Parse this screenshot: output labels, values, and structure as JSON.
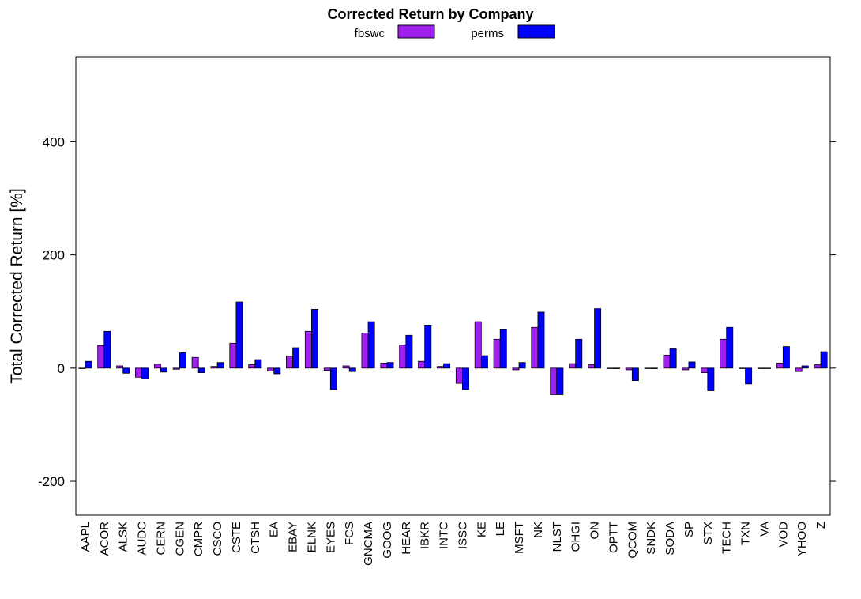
{
  "chart_data": {
    "type": "bar",
    "title": "Corrected Return by Company",
    "xlabel": "",
    "ylabel": "Total Corrected Return [%]",
    "ylim": [
      -260,
      550
    ],
    "yticks": [
      -200,
      0,
      200,
      400
    ],
    "grid": false,
    "legend_position": "top",
    "categories": [
      "AAPL",
      "ACOR",
      "ALSK",
      "AUDC",
      "CERN",
      "CGEN",
      "CMPR",
      "CSCO",
      "CSTE",
      "CTSH",
      "EA",
      "EBAY",
      "ELNK",
      "EYES",
      "FCS",
      "GNCMA",
      "GOOG",
      "HEAR",
      "IBKR",
      "INTC",
      "ISSC",
      "KE",
      "LE",
      "MSFT",
      "NK",
      "NLST",
      "OHGI",
      "ON",
      "OPTT",
      "QCOM",
      "SNDK",
      "SODA",
      "SP",
      "STX",
      "TECH",
      "TXN",
      "VA",
      "VOD",
      "YHOO",
      "Z"
    ],
    "series": [
      {
        "name": "fbswc",
        "color": "#A020F0",
        "values": [
          0,
          40,
          4,
          -16,
          7,
          -2,
          19,
          3,
          44,
          6,
          -5,
          21,
          65,
          -4,
          4,
          62,
          9,
          41,
          12,
          3,
          -27,
          82,
          51,
          -3,
          72,
          -47,
          8,
          6,
          0,
          -3,
          0,
          23,
          -3,
          -8,
          51,
          0,
          0,
          9,
          -6,
          6
        ]
      },
      {
        "name": "perms",
        "color": "#0000FF",
        "values": [
          12,
          65,
          -9,
          -19,
          -7,
          27,
          -8,
          10,
          117,
          15,
          -10,
          36,
          104,
          -38,
          -6,
          82,
          10,
          58,
          76,
          8,
          -38,
          22,
          69,
          10,
          99,
          -47,
          51,
          105,
          -1,
          -22,
          -1,
          34,
          11,
          -40,
          72,
          -28,
          0,
          38,
          4,
          29
        ]
      }
    ]
  }
}
